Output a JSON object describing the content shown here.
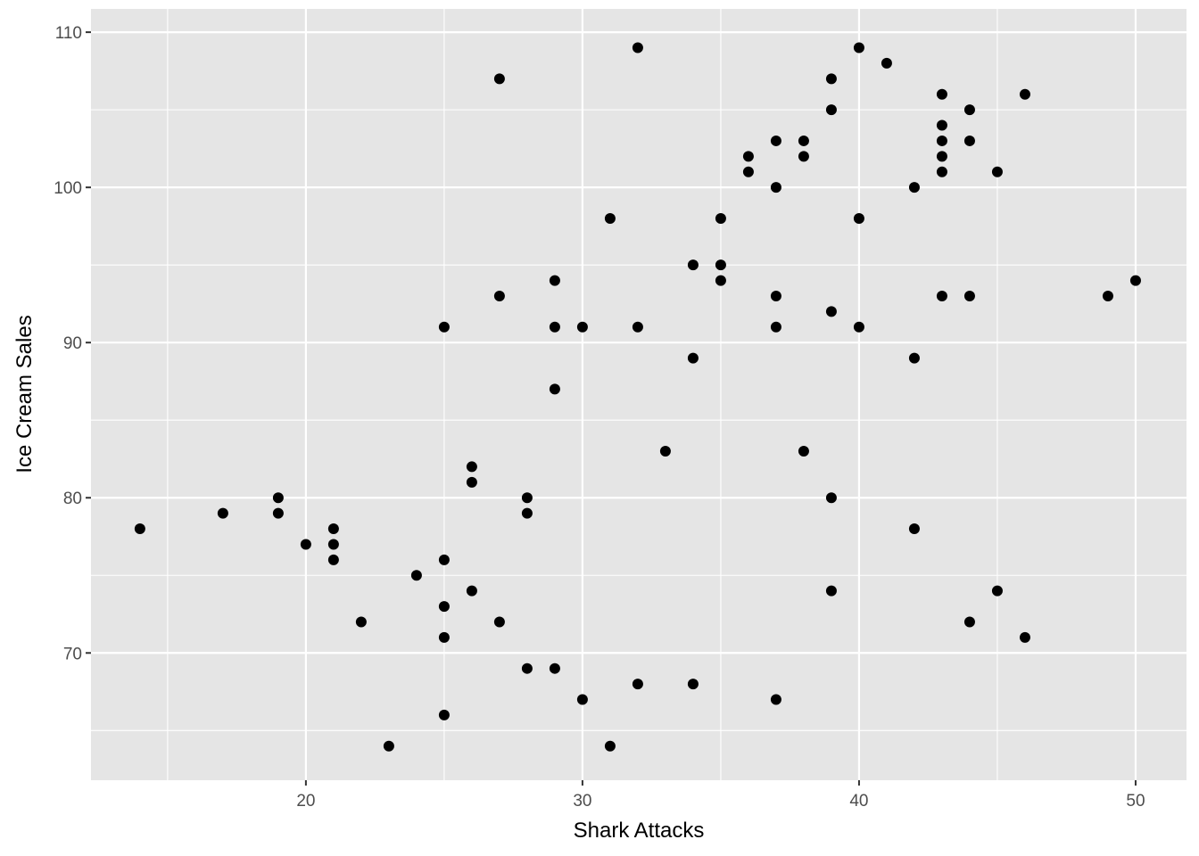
{
  "chart_data": {
    "type": "scatter",
    "title": "",
    "xlabel": "Shark Attacks",
    "ylabel": "Ice Cream Sales",
    "xlim": [
      12.23,
      51.84
    ],
    "ylim": [
      61.8,
      111.5
    ],
    "xticks": [
      20,
      30,
      40,
      50
    ],
    "yticks": [
      70,
      80,
      90,
      100,
      110
    ],
    "grid": true,
    "colors": {
      "panel": "#e5e5e5",
      "grid": "#ffffff",
      "point": "#000000"
    },
    "points": [
      [
        14,
        78
      ],
      [
        17,
        79
      ],
      [
        19,
        80
      ],
      [
        19,
        79
      ],
      [
        20,
        77
      ],
      [
        21,
        78
      ],
      [
        21,
        77
      ],
      [
        21,
        76
      ],
      [
        22,
        72
      ],
      [
        23,
        64
      ],
      [
        24,
        75
      ],
      [
        25,
        91
      ],
      [
        25,
        76
      ],
      [
        25,
        73
      ],
      [
        25,
        71
      ],
      [
        25,
        66
      ],
      [
        26,
        82
      ],
      [
        26,
        81
      ],
      [
        26,
        74
      ],
      [
        27,
        107
      ],
      [
        27,
        93
      ],
      [
        27,
        72
      ],
      [
        28,
        80
      ],
      [
        28,
        79
      ],
      [
        28,
        69
      ],
      [
        29,
        94
      ],
      [
        29,
        91
      ],
      [
        29,
        87
      ],
      [
        29,
        69
      ],
      [
        30,
        91
      ],
      [
        30,
        67
      ],
      [
        31,
        98
      ],
      [
        31,
        64
      ],
      [
        32,
        109
      ],
      [
        32,
        91
      ],
      [
        32,
        68
      ],
      [
        33,
        83
      ],
      [
        34,
        95
      ],
      [
        34,
        89
      ],
      [
        34,
        68
      ],
      [
        35,
        98
      ],
      [
        35,
        95
      ],
      [
        35,
        94
      ],
      [
        36,
        102
      ],
      [
        36,
        101
      ],
      [
        37,
        103
      ],
      [
        37,
        100
      ],
      [
        37,
        93
      ],
      [
        37,
        91
      ],
      [
        37,
        67
      ],
      [
        38,
        103
      ],
      [
        38,
        102
      ],
      [
        38,
        83
      ],
      [
        39,
        107
      ],
      [
        39,
        105
      ],
      [
        39,
        92
      ],
      [
        39,
        80
      ],
      [
        39,
        74
      ],
      [
        40,
        109
      ],
      [
        40,
        98
      ],
      [
        40,
        91
      ],
      [
        41,
        108
      ],
      [
        42,
        100
      ],
      [
        42,
        89
      ],
      [
        42,
        78
      ],
      [
        43,
        106
      ],
      [
        43,
        104
      ],
      [
        43,
        103
      ],
      [
        43,
        102
      ],
      [
        43,
        101
      ],
      [
        43,
        93
      ],
      [
        44,
        105
      ],
      [
        44,
        103
      ],
      [
        44,
        93
      ],
      [
        44,
        72
      ],
      [
        45,
        101
      ],
      [
        45,
        74
      ],
      [
        46,
        106
      ],
      [
        46,
        71
      ],
      [
        49,
        93
      ],
      [
        50,
        94
      ]
    ]
  }
}
